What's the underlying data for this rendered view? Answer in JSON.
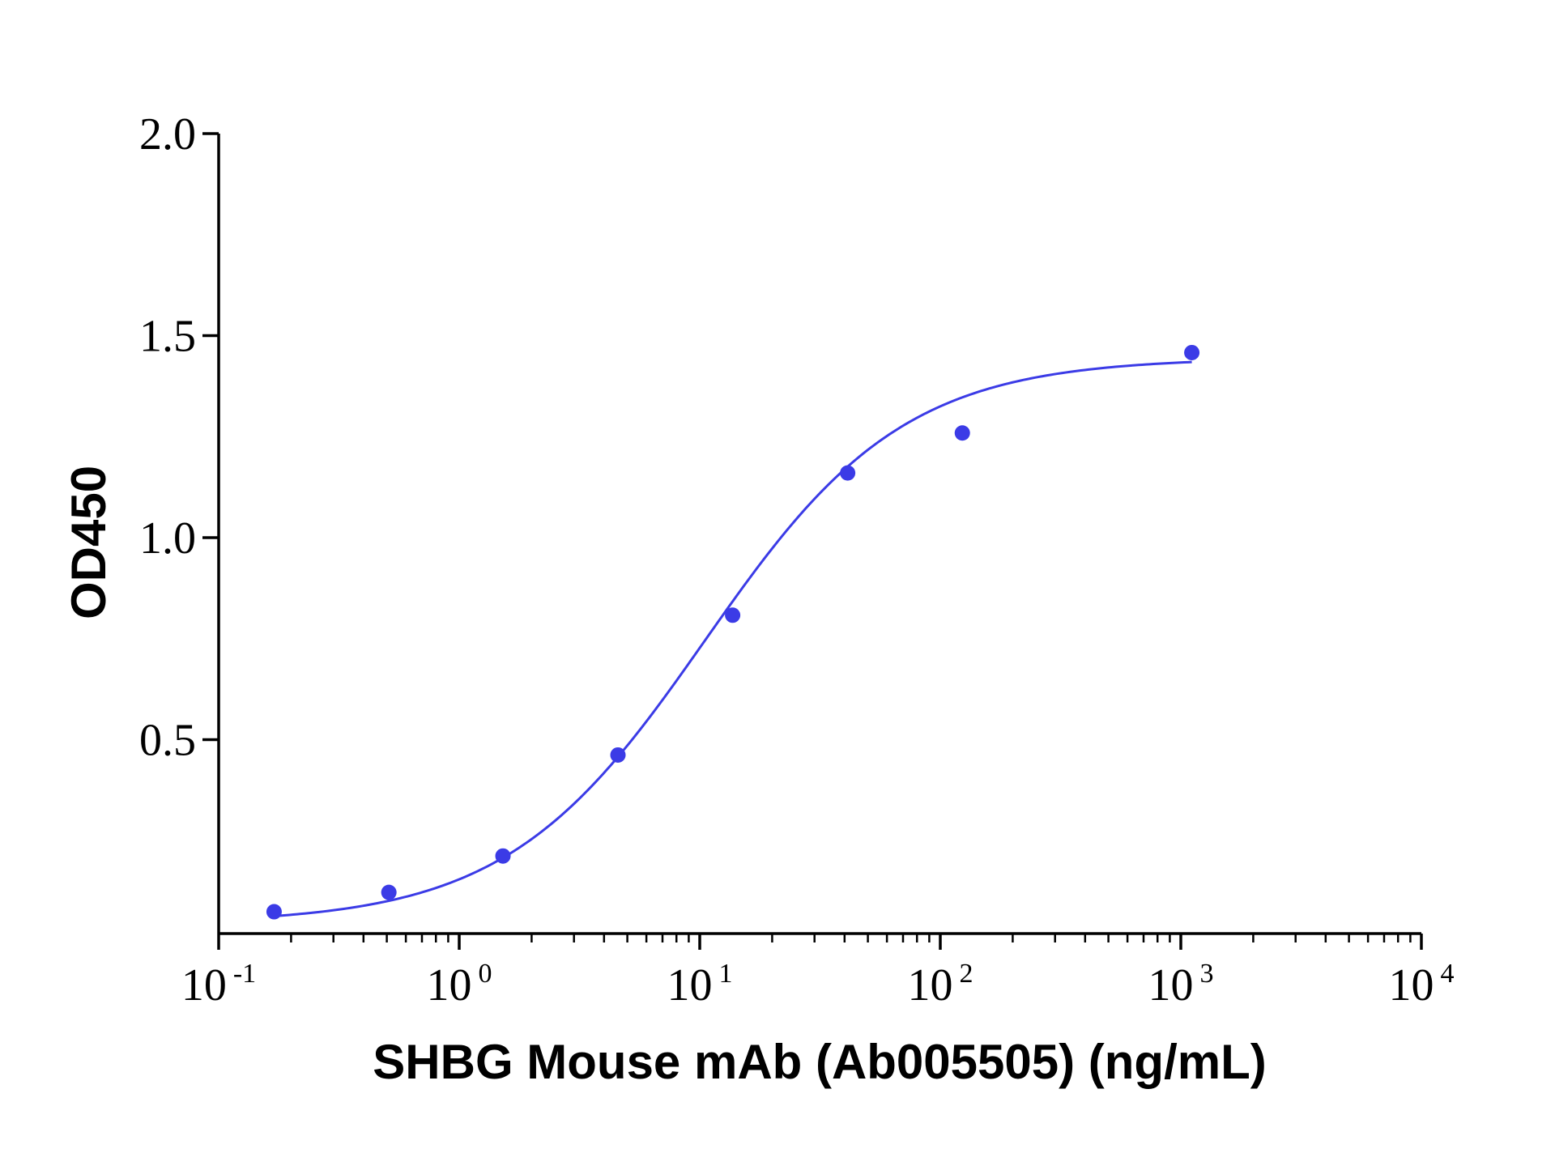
{
  "chart_data": {
    "type": "scatter",
    "xlabel": "SHBG Mouse mAb (Ab005505) (ng/mL)",
    "ylabel": "OD450",
    "x_scale": "log",
    "xlim": [
      0.1,
      10000
    ],
    "ylim": [
      0.02,
      2.0
    ],
    "y_ticks": [
      {
        "value": 0.5,
        "label": "0.5"
      },
      {
        "value": 1.0,
        "label": "1.0"
      },
      {
        "value": 1.5,
        "label": "1.5"
      },
      {
        "value": 2.0,
        "label": "2.0"
      }
    ],
    "x_ticks": [
      {
        "value": 0.1,
        "base": "10",
        "exp": "-1"
      },
      {
        "value": 1,
        "base": "10",
        "exp": "0"
      },
      {
        "value": 10,
        "base": "10",
        "exp": "1"
      },
      {
        "value": 100,
        "base": "10",
        "exp": "2"
      },
      {
        "value": 1000,
        "base": "10",
        "exp": "3"
      },
      {
        "value": 10000,
        "base": "10",
        "exp": "4"
      }
    ],
    "grid": false,
    "legend": "none",
    "color": "#3b3be6",
    "series": [
      {
        "x": [
          0.17,
          0.51,
          1.52,
          4.57,
          13.7,
          41.2,
          123.5,
          1111
        ],
        "y": [
          0.074,
          0.122,
          0.212,
          0.462,
          0.808,
          1.16,
          1.259,
          1.458
        ],
        "fit": "four-parameter logistic"
      }
    ]
  }
}
